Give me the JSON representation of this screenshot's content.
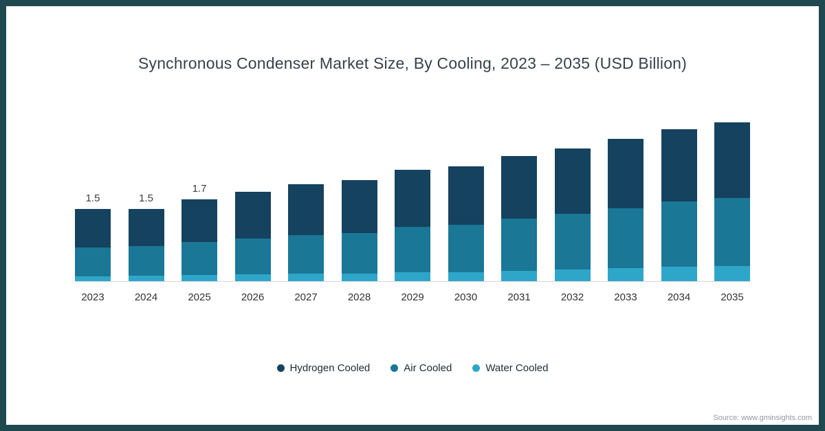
{
  "title": "Synchronous Condenser Market Size, By Cooling, 2023 – 2035 (USD Billion)",
  "source": "Source: www.gminsights.com",
  "colors": {
    "frame_border": "#20484f",
    "hydrogen_cooled": "#14425f",
    "air_cooled": "#1a7795",
    "water_cooled": "#2ea6c9",
    "axis_line": "#d8d8d8"
  },
  "chart_data": {
    "type": "bar",
    "stacked": true,
    "title": "Synchronous Condenser Market Size, By Cooling, 2023 – 2035 (USD Billion)",
    "xlabel": "",
    "ylabel": "USD Billion",
    "ylim": [
      0,
      3.5
    ],
    "grid": false,
    "legend_position": "bottom",
    "categories": [
      "2023",
      "2024",
      "2025",
      "2026",
      "2027",
      "2028",
      "2029",
      "2030",
      "2031",
      "2032",
      "2033",
      "2034",
      "2035"
    ],
    "series": [
      {
        "name": "Hydrogen Cooled",
        "color": "#14425f",
        "values": [
          0.8,
          0.77,
          0.88,
          0.97,
          1.05,
          1.1,
          1.18,
          1.22,
          1.3,
          1.36,
          1.44,
          1.5,
          1.57
        ]
      },
      {
        "name": "Air Cooled",
        "color": "#1a7795",
        "values": [
          0.6,
          0.62,
          0.69,
          0.74,
          0.8,
          0.84,
          0.94,
          0.99,
          1.08,
          1.15,
          1.24,
          1.35,
          1.42
        ]
      },
      {
        "name": "Water Cooled",
        "color": "#2ea6c9",
        "values": [
          0.1,
          0.11,
          0.13,
          0.14,
          0.15,
          0.16,
          0.18,
          0.19,
          0.22,
          0.24,
          0.27,
          0.3,
          0.31
        ]
      }
    ],
    "totals": [
      1.5,
      1.5,
      1.7,
      1.85,
      2.0,
      2.1,
      2.3,
      2.4,
      2.6,
      2.75,
      2.95,
      3.15,
      3.3
    ],
    "bar_labels": [
      "1.5",
      "1.5",
      "1.7",
      "",
      "",
      "",
      "",
      "",
      "",
      "",
      "",
      "",
      ""
    ]
  }
}
